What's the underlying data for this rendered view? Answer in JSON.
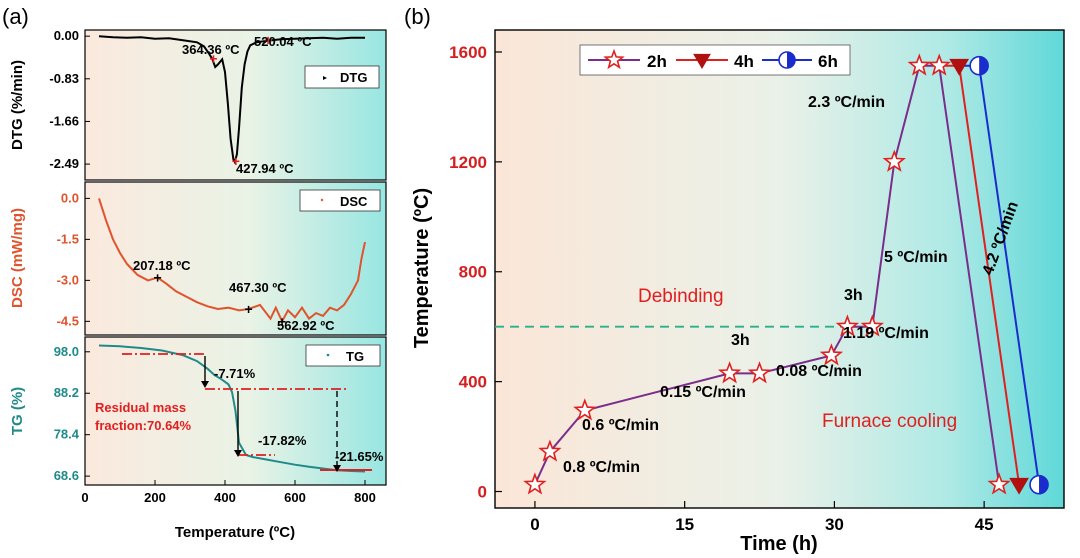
{
  "panel_labels": {
    "a": "(a)",
    "b": "(b)"
  },
  "colors": {
    "dtg": "#000000",
    "dsc": "#e0532c",
    "tg": "#1f8a8a",
    "red": "#e02020",
    "purple": "#7b2d8b",
    "blue": "#1a2ccc",
    "dashed": "#2ab08a",
    "axis_red": "#d42020",
    "grad_left": "#fbe8dc",
    "grad_right": "#8fe4e4"
  },
  "chart_data": [
    {
      "type": "line",
      "id": "dtg",
      "ylabel": "DTG (%/min)",
      "ylim": [
        -2.8,
        0.12
      ],
      "xlim": [
        0,
        860
      ],
      "yticks": [
        "0.00",
        "-0.83",
        "-1.66",
        "-2.49"
      ],
      "ytick_values": [
        0.0,
        -0.83,
        -1.66,
        -2.49
      ],
      "legend": "DTG",
      "legend_position": "top-right",
      "series": [
        {
          "name": "DTG",
          "x": [
            40,
            80,
            120,
            160,
            200,
            240,
            280,
            320,
            340,
            355,
            364,
            372,
            380,
            392,
            400,
            408,
            416,
            424,
            428,
            434,
            440,
            448,
            456,
            464,
            472,
            490,
            520,
            560,
            600,
            640,
            680,
            720,
            760,
            800
          ],
          "y": [
            0.0,
            -0.02,
            -0.03,
            -0.02,
            -0.05,
            -0.04,
            -0.08,
            -0.12,
            -0.2,
            -0.35,
            -0.45,
            -0.6,
            -0.55,
            -0.45,
            -0.7,
            -1.3,
            -2.0,
            -2.4,
            -2.45,
            -2.3,
            -1.8,
            -1.0,
            -0.55,
            -0.3,
            -0.18,
            -0.12,
            -0.09,
            -0.06,
            -0.05,
            -0.04,
            -0.03,
            -0.05,
            -0.03,
            -0.03
          ]
        }
      ],
      "annotations": [
        {
          "text": "364.36 ºC",
          "x": 364,
          "y": -0.45
        },
        {
          "text": "520.04 ºC",
          "x": 520,
          "y": -0.09
        },
        {
          "text": "427.94 ºC",
          "x": 428,
          "y": -2.45
        }
      ]
    },
    {
      "type": "line",
      "id": "dsc",
      "ylabel": "DSC (mW/mg)",
      "ylim": [
        -5.0,
        0.6
      ],
      "xlim": [
        0,
        860
      ],
      "yticks": [
        "0.0",
        "-1.5",
        "-3.0",
        "-4.5"
      ],
      "ytick_values": [
        0.0,
        -1.5,
        -3.0,
        -4.5
      ],
      "legend": "DSC",
      "legend_position": "top-right",
      "series": [
        {
          "name": "DSC",
          "x": [
            40,
            60,
            80,
            100,
            120,
            150,
            180,
            207,
            230,
            260,
            290,
            320,
            350,
            380,
            410,
            440,
            467,
            500,
            530,
            545,
            563,
            580,
            600,
            620,
            640,
            660,
            680,
            700,
            720,
            740,
            760,
            780,
            790,
            800
          ],
          "y": [
            0.0,
            -0.8,
            -1.5,
            -2.0,
            -2.4,
            -2.8,
            -3.0,
            -2.9,
            -3.1,
            -3.4,
            -3.6,
            -3.8,
            -3.95,
            -4.05,
            -4.0,
            -4.1,
            -4.05,
            -3.9,
            -4.4,
            -4.0,
            -4.5,
            -4.1,
            -4.35,
            -4.0,
            -4.4,
            -4.2,
            -4.3,
            -4.0,
            -4.1,
            -3.9,
            -3.5,
            -3.0,
            -2.2,
            -1.6
          ]
        }
      ],
      "annotations": [
        {
          "text": "207.18 ºC",
          "x": 207,
          "y": -2.9
        },
        {
          "text": "467.30 ºC",
          "x": 467,
          "y": -4.05
        },
        {
          "text": "562.92 ºC",
          "x": 563,
          "y": -4.5
        }
      ]
    },
    {
      "type": "line",
      "id": "tg",
      "xlabel": "Temperature (ºC)",
      "ylabel": "TG (%)",
      "ylim": [
        66.5,
        101.5
      ],
      "xlim": [
        0,
        860
      ],
      "xticks": [
        0,
        200,
        400,
        600,
        800
      ],
      "yticks": [
        "98.0",
        "88.2",
        "78.4",
        "68.6"
      ],
      "ytick_values": [
        98.0,
        88.2,
        78.4,
        68.6
      ],
      "legend": "TG",
      "legend_position": "top-right",
      "series": [
        {
          "name": "TG",
          "x": [
            40,
            100,
            160,
            220,
            280,
            320,
            350,
            370,
            390,
            410,
            420,
            430,
            440,
            460,
            480,
            520,
            560,
            600,
            640,
            680,
            720,
            760,
            800
          ],
          "y": [
            99.5,
            99.3,
            98.9,
            98.3,
            97.2,
            95.8,
            94.0,
            92.5,
            91.5,
            90.3,
            88.5,
            84.0,
            76.5,
            73.6,
            73.1,
            72.5,
            71.9,
            71.3,
            70.8,
            70.4,
            70.0,
            69.8,
            69.7
          ]
        }
      ],
      "annotations": [
        {
          "text": "-7.71%"
        },
        {
          "text": "-17.82%"
        },
        {
          "text": "-21.65%"
        },
        {
          "text": "Residual mass"
        },
        {
          "text": "fraction:70.64%"
        }
      ]
    },
    {
      "type": "line",
      "id": "schedule",
      "xlabel": "Time (h)",
      "ylabel": "Temperature (ºC)",
      "xlim": [
        -4,
        53
      ],
      "ylim": [
        -60,
        1680
      ],
      "xticks": [
        0,
        15,
        30,
        45
      ],
      "yticks": [
        0,
        400,
        800,
        1200,
        1600
      ],
      "legend_position": "top-left",
      "series": [
        {
          "name": "2h",
          "marker": "star",
          "x": [
            0,
            1.5,
            5,
            19.5,
            22.5,
            29.7,
            31.3,
            33.8,
            36,
            38.5,
            40.5,
            46.5
          ],
          "y": [
            25,
            145,
            295,
            430,
            430,
            495,
            600,
            600,
            1200,
            1550,
            1550,
            25
          ]
        },
        {
          "name": "4h",
          "marker": "triangle-down",
          "x": [
            42.5,
            48.5
          ],
          "y": [
            1550,
            25
          ]
        },
        {
          "name": "6h",
          "marker": "half-circle",
          "x": [
            44.5,
            50.5
          ],
          "y": [
            1550,
            25
          ]
        }
      ],
      "reference_line": {
        "label": "Debinding",
        "y": 600
      },
      "annotations": [
        {
          "text": "0.8 ºC/min"
        },
        {
          "text": "0.6 ºC/min"
        },
        {
          "text": "0.15 ºC/min"
        },
        {
          "text": "3h"
        },
        {
          "text": "0.08 ºC/min"
        },
        {
          "text": "3h"
        },
        {
          "text": "1.19 ºC/min"
        },
        {
          "text": "5 ºC/min"
        },
        {
          "text": "2.3 ºC/min"
        },
        {
          "text": "4.2 ºC/min"
        },
        {
          "text": "Furnace cooling"
        }
      ]
    }
  ]
}
